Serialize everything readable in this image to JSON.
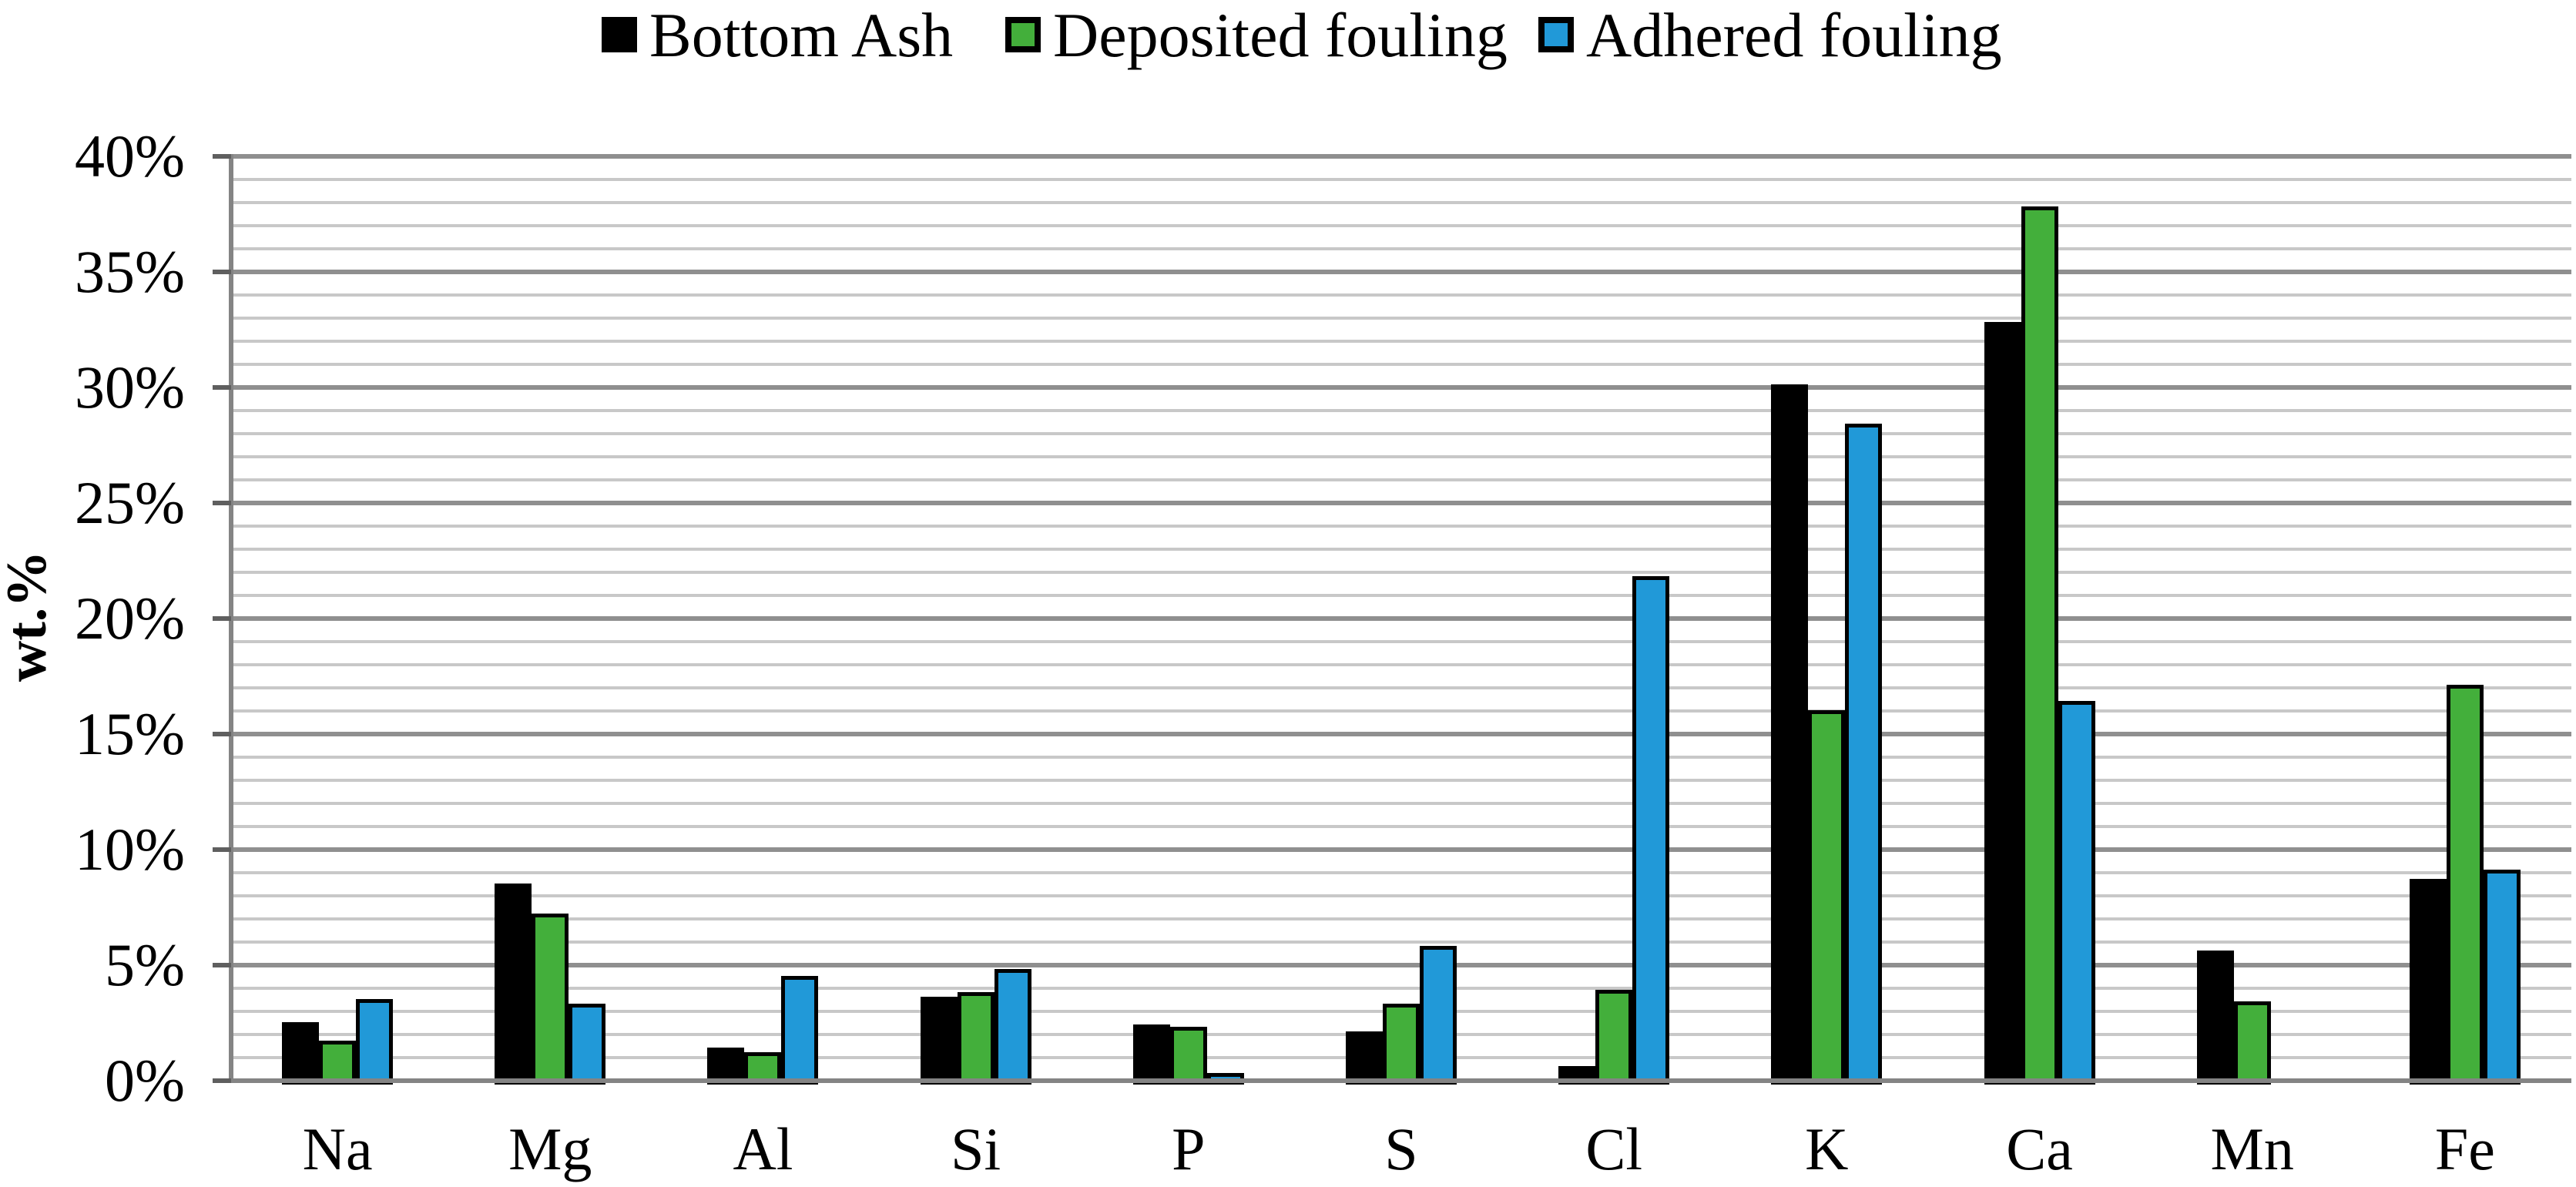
{
  "chart_data": {
    "type": "bar",
    "title": "",
    "xlabel": "",
    "ylabel": "wt.%",
    "ylim": [
      0,
      40
    ],
    "y_major_step": 5,
    "y_minor_step": 1,
    "grid": "horizontal, minor every 1%, major every 5%",
    "legend_position": "top",
    "ytick_labels": [
      "0%",
      "5%",
      "10%",
      "15%",
      "20%",
      "25%",
      "30%",
      "35%",
      "40%"
    ],
    "categories": [
      "Na",
      "Mg",
      "Al",
      "Si",
      "P",
      "S",
      "Cl",
      "K",
      "Ca",
      "Mn",
      "Fe"
    ],
    "series": [
      {
        "name": "Bottom Ash",
        "color": "#000000",
        "values": [
          2.7,
          8.7,
          1.6,
          3.8,
          2.6,
          2.3,
          0.8,
          30.3,
          33.0,
          5.8,
          8.9
        ]
      },
      {
        "name": "Deposited fouling",
        "color": "#43AF3B",
        "values": [
          1.9,
          7.4,
          1.4,
          4.0,
          2.5,
          3.5,
          4.1,
          16.2,
          38.0,
          3.6,
          17.3
        ]
      },
      {
        "name": "Adhered fouling",
        "color": "#2199D8",
        "values": [
          3.7,
          3.5,
          4.7,
          5.0,
          0.5,
          6.0,
          22.0,
          28.6,
          16.6,
          0,
          9.3
        ]
      }
    ]
  },
  "colors": {
    "minor_grid": "#c8c8c8",
    "major_grid": "#8f8f8f",
    "axis": "#848484",
    "tick": "#5f5f5f",
    "background": "#ffffff"
  }
}
